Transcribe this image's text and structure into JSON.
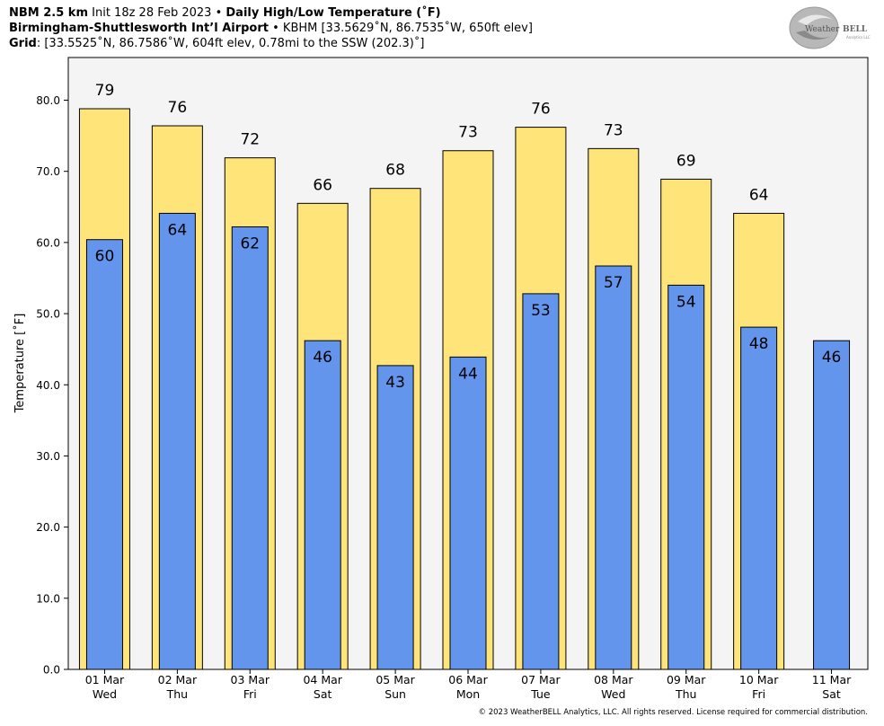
{
  "header": {
    "line1_bold_a": "NBM 2.5 km",
    "line1_text": " Init 18z 28 Feb 2023 • ",
    "line1_bold_b": "Daily High/Low Temperature (˚F)",
    "line2_bold": "Birmingham-Shuttlesworth Int’l Airport",
    "line2_text": " • KBHM [33.5629˚N, 86.7535˚W, 650ft elev]",
    "line3_bold": "Grid",
    "line3_text": ": [33.5525˚N, 86.7586˚W, 604ft elev, 0.78mi to the SSW (202.3)˚]"
  },
  "logo": {
    "text_a": "Weather",
    "text_b": "BELL",
    "sub": "Analytics LLC"
  },
  "footer": "© 2023 WeatherBELL Analytics, LLC. All rights reserved. License required for commercial distribution.",
  "colors": {
    "high": "#ffe47a",
    "low": "#6495ed",
    "plot_bg": "#f4f4f4"
  },
  "chart_data": {
    "type": "bar",
    "ylabel": "Temperature [˚F]",
    "ylim": [
      0,
      86
    ],
    "yticks": [
      "0.0",
      "10.0",
      "20.0",
      "30.0",
      "40.0",
      "50.0",
      "60.0",
      "70.0",
      "80.0"
    ],
    "categories": [
      [
        "01 Mar",
        "Wed"
      ],
      [
        "02 Mar",
        "Thu"
      ],
      [
        "03 Mar",
        "Fri"
      ],
      [
        "04 Mar",
        "Sat"
      ],
      [
        "05 Mar",
        "Sun"
      ],
      [
        "06 Mar",
        "Mon"
      ],
      [
        "07 Mar",
        "Tue"
      ],
      [
        "08 Mar",
        "Wed"
      ],
      [
        "09 Mar",
        "Thu"
      ],
      [
        "10 Mar",
        "Fri"
      ],
      [
        "11 Mar",
        "Sat"
      ]
    ],
    "series": [
      {
        "values": [
          78.8,
          76.4,
          71.9,
          65.5,
          67.6,
          72.9,
          76.2,
          73.2,
          68.9,
          64.1,
          null
        ],
        "labels": [
          "79",
          "76",
          "72",
          "66",
          "68",
          "73",
          "76",
          "73",
          "69",
          "64",
          null
        ]
      },
      {
        "values": [
          60.4,
          64.1,
          62.2,
          46.2,
          42.7,
          43.9,
          52.8,
          56.7,
          54.0,
          48.1,
          46.2
        ],
        "labels": [
          "60",
          "64",
          "62",
          "46",
          "43",
          "44",
          "53",
          "57",
          "54",
          "48",
          "46"
        ]
      }
    ]
  }
}
